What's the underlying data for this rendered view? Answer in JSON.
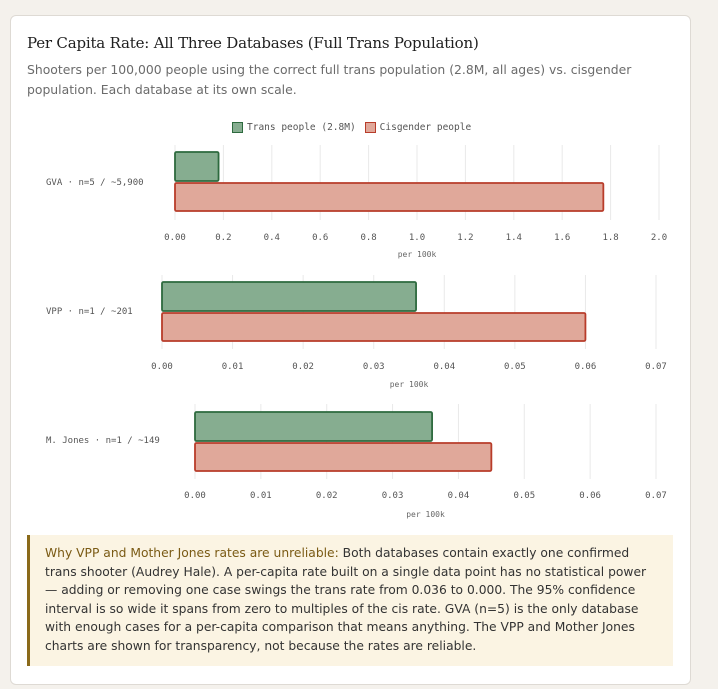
{
  "header": {
    "title": "Per Capita Rate: All Three Databases (Full Trans Population)",
    "subtitle": "Shooters per 100,000 people using the correct full trans population (2.8M, all ages) vs. cisgender population. Each database at its own scale."
  },
  "legend": [
    {
      "label": "Trans people (2.8M)",
      "fill": "#86ad90",
      "stroke": "#2d6a3e"
    },
    {
      "label": "Cisgender people",
      "fill": "#e0a89a",
      "stroke": "#b83c2a"
    }
  ],
  "chart_data": [
    {
      "type": "bar",
      "orientation": "horizontal",
      "category": "GVA · n=5 / ~5,900",
      "series": [
        {
          "name": "Trans people (2.8M)",
          "values": [
            0.18
          ]
        },
        {
          "name": "Cisgender people",
          "values": [
            1.77
          ]
        }
      ],
      "xlabel": "per 100k",
      "xlim": [
        0,
        2.0
      ],
      "ticks": [
        "0.00",
        "0.2",
        "0.4",
        "0.6",
        "0.8",
        "1.0",
        "1.2",
        "1.4",
        "1.6",
        "1.8",
        "2.0"
      ],
      "grid": true
    },
    {
      "type": "bar",
      "orientation": "horizontal",
      "category": "VPP · n=1 / ~201",
      "series": [
        {
          "name": "Trans people (2.8M)",
          "values": [
            0.036
          ]
        },
        {
          "name": "Cisgender people",
          "values": [
            0.06
          ]
        }
      ],
      "xlabel": "per 100k",
      "xlim": [
        0,
        0.07
      ],
      "ticks": [
        "0.00",
        "0.01",
        "0.02",
        "0.03",
        "0.04",
        "0.05",
        "0.06",
        "0.07"
      ],
      "grid": true
    },
    {
      "type": "bar",
      "orientation": "horizontal",
      "category": "M. Jones · n=1 / ~149",
      "series": [
        {
          "name": "Trans people (2.8M)",
          "values": [
            0.036
          ]
        },
        {
          "name": "Cisgender people",
          "values": [
            0.045
          ]
        }
      ],
      "xlabel": "per 100k",
      "xlim": [
        0,
        0.07
      ],
      "ticks": [
        "0.00",
        "0.01",
        "0.02",
        "0.03",
        "0.04",
        "0.05",
        "0.06",
        "0.07"
      ],
      "grid": true
    }
  ],
  "note": {
    "lead": "Why VPP and Mother Jones rates are unreliable:",
    "body": " Both databases contain exactly one confirmed trans shooter (Audrey Hale). A per-capita rate built on a single data point has no statistical power — adding or removing one case swings the trans rate from 0.036 to 0.000. The 95% confidence interval is so wide it spans from zero to multiples of the cis rate. GVA (n=5) is the only database with enough cases for a per-capita comparison that means anything. The VPP and Mother Jones charts are shown for transparency, not because the rates are reliable."
  }
}
